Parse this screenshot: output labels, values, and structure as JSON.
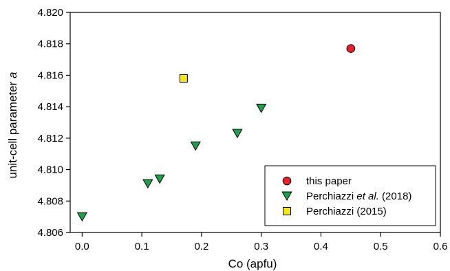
{
  "chart_data": {
    "type": "scatter",
    "title": "",
    "xlabel": "Co (apfu)",
    "ylabel": {
      "plain": "unit-cell parameter ",
      "italic": "a"
    },
    "xlim": [
      -0.02,
      0.6
    ],
    "ylim": [
      4.806,
      4.82
    ],
    "xticks": [
      "0.0",
      "0.1",
      "0.2",
      "0.3",
      "0.4",
      "0.5",
      "0.6"
    ],
    "yticks": [
      "4.806",
      "4.808",
      "4.810",
      "4.812",
      "4.814",
      "4.816",
      "4.818",
      "4.820"
    ],
    "grid": false,
    "legend_position": "bottom-right",
    "series": [
      {
        "key": "this-paper",
        "name": "this paper",
        "name_parts": [
          {
            "text": "this paper",
            "italic": false
          }
        ],
        "marker": "circle",
        "color": "#e8202a",
        "points": [
          {
            "x": 0.45,
            "y": 4.8177
          }
        ]
      },
      {
        "key": "perchiazzi-2018",
        "name": "Perchiazzi et al. (2018)",
        "name_parts": [
          {
            "text": "Perchiazzi ",
            "italic": false
          },
          {
            "text": "et al.",
            "italic": true
          },
          {
            "text": " (2018)",
            "italic": false
          }
        ],
        "marker": "triangle-down",
        "color": "#1aa14a",
        "points": [
          {
            "x": 0.0,
            "y": 4.807
          },
          {
            "x": 0.11,
            "y": 4.8091
          },
          {
            "x": 0.13,
            "y": 4.8094
          },
          {
            "x": 0.19,
            "y": 4.8115
          },
          {
            "x": 0.26,
            "y": 4.8123
          },
          {
            "x": 0.3,
            "y": 4.8139
          }
        ]
      },
      {
        "key": "perchiazzi-2015",
        "name": "Perchiazzi (2015)",
        "name_parts": [
          {
            "text": "Perchiazzi (2015)",
            "italic": false
          }
        ],
        "marker": "square",
        "color": "#f6e51b",
        "points": [
          {
            "x": 0.17,
            "y": 4.8158
          }
        ]
      }
    ]
  }
}
